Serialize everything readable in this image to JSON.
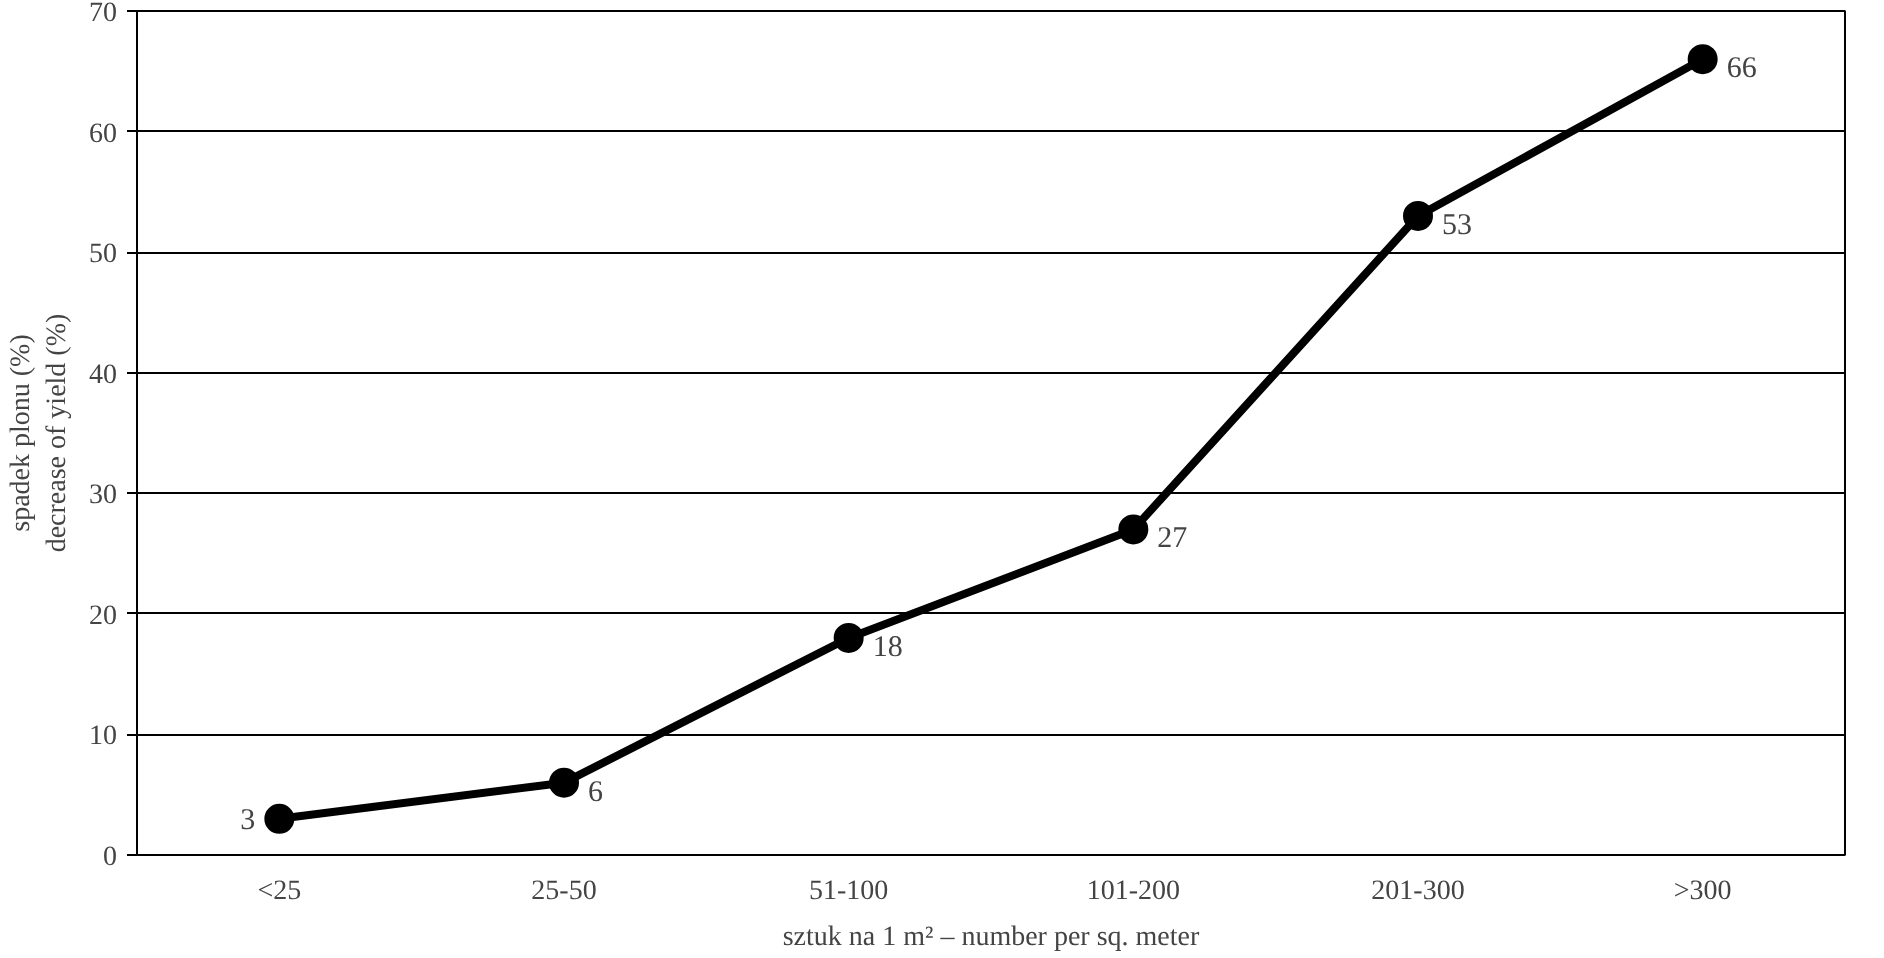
{
  "chart_data": {
    "type": "line",
    "xlabel": "sztuk na 1 m² – number per sq. meter",
    "ylabel": "spadek plonu (%)\ndecrease of yield (%)",
    "categories": [
      "<25",
      "25-50",
      "51-100",
      "101-200",
      "201-300",
      ">300"
    ],
    "series": [
      {
        "color": "#000000",
        "values": [
          3,
          6,
          18,
          27,
          53,
          66
        ]
      }
    ],
    "ylim": [
      0,
      70
    ],
    "yticks": [
      0,
      10,
      20,
      30,
      40,
      50,
      60,
      70
    ],
    "grid": "y",
    "marker": "circle",
    "line_style": "solid",
    "data_labels": true
  }
}
